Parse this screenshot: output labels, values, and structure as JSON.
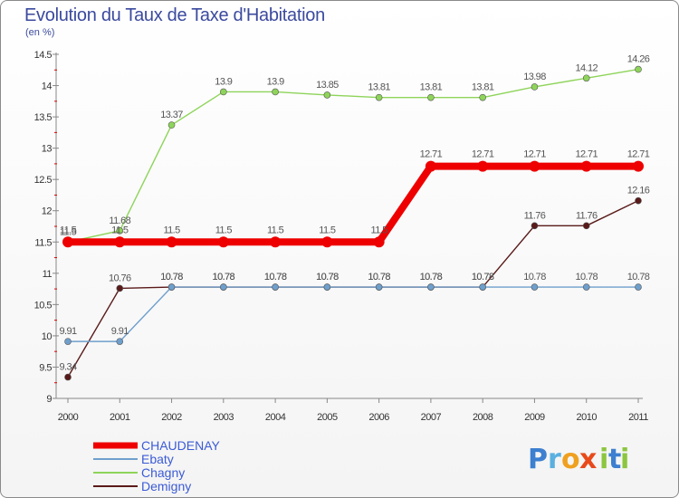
{
  "chart_data": {
    "type": "line",
    "title": "Evolution du Taux de Taxe d'Habitation",
    "unit_label": "(en %)",
    "xlabel": "",
    "ylabel": "",
    "x": [
      "2000",
      "2001",
      "2002",
      "2003",
      "2004",
      "2005",
      "2006",
      "2007",
      "2008",
      "2009",
      "2010",
      "2011"
    ],
    "y_ticks": [
      "9",
      "9.5",
      "10",
      "10.5",
      "11",
      "11.5",
      "12",
      "12.5",
      "13",
      "13.5",
      "14",
      "14.5"
    ],
    "ylim": [
      9,
      14.5
    ],
    "grid": false,
    "legend_position": "bottom-left",
    "series": [
      {
        "name": "Demigny",
        "color": "#5a1a1a",
        "width": 1.4,
        "marker": 3.5,
        "values": [
          9.34,
          10.76,
          10.78,
          10.78,
          10.78,
          10.78,
          10.78,
          10.78,
          10.78,
          11.76,
          11.76,
          12.16
        ],
        "labels": [
          "9.34",
          "10.76",
          "10.78",
          "10.78",
          "10.78",
          "10.78",
          "10.78",
          "10.78",
          "10.78",
          "11.76",
          "11.76",
          "12.16"
        ]
      },
      {
        "name": "Ebaty",
        "color": "#6f9fcc",
        "width": 1.4,
        "marker": 3.5,
        "values": [
          9.91,
          9.91,
          10.78,
          10.78,
          10.78,
          10.78,
          10.78,
          10.78,
          10.78,
          10.78,
          10.78,
          10.78
        ],
        "labels": [
          "9.91",
          "9.91",
          "10.78",
          "10.78",
          "10.78",
          "10.78",
          "10.78",
          "10.78",
          "10.78",
          "10.78",
          "10.78",
          "10.78"
        ]
      },
      {
        "name": "Chagny",
        "color": "#8ed45a",
        "width": 1.4,
        "marker": 3.5,
        "values": [
          11.5,
          11.68,
          13.37,
          13.9,
          13.9,
          13.85,
          13.81,
          13.81,
          13.81,
          13.98,
          14.12,
          14.26
        ],
        "labels": [
          "11.5",
          "11.68",
          "13.37",
          "13.9",
          "13.9",
          "13.85",
          "13.81",
          "13.81",
          "13.81",
          "13.98",
          "14.12",
          "14.26"
        ]
      },
      {
        "name": "CHAUDENAY",
        "color": "#ee0000",
        "width": 8,
        "marker": 6,
        "values": [
          11.5,
          11.5,
          11.5,
          11.5,
          11.5,
          11.5,
          11.5,
          12.71,
          12.71,
          12.71,
          12.71,
          12.71
        ],
        "labels": [
          "11.5",
          "11.5",
          "11.5",
          "11.5",
          "11.5",
          "11.5",
          "11.5",
          "12.71",
          "12.71",
          "12.71",
          "12.71",
          "12.71"
        ]
      }
    ],
    "legend_order": [
      "CHAUDENAY",
      "Ebaty",
      "Chagny",
      "Demigny"
    ]
  },
  "brand": {
    "name": "Proxiti",
    "letters": [
      "P",
      "r",
      "o",
      "x",
      "i",
      "t",
      "i"
    ],
    "colors": [
      "#3d7fd0",
      "#5ab0e0",
      "#f0a020",
      "#e84a1a",
      "#8cc63f",
      "#3d7fd0",
      "#8cc63f"
    ]
  }
}
